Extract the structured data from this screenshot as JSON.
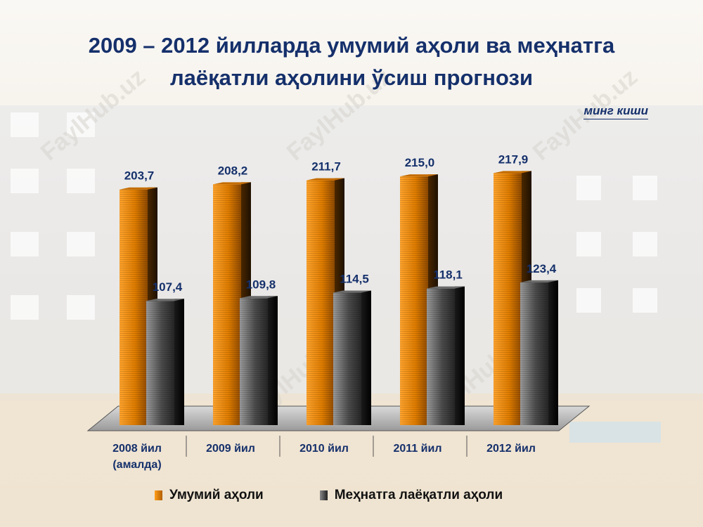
{
  "chart_data": {
    "type": "bar",
    "title_line1": "2009 – 2012 йилларда умумий аҳоли ва меҳнатга",
    "title_line2": "лаёқатли аҳолини ўсиш прогнози",
    "unit": "минг киши",
    "categories": [
      [
        "2008 йил",
        "(амалда)"
      ],
      [
        "2009 йил"
      ],
      [
        "2010 йил"
      ],
      [
        "2011 йил"
      ],
      [
        "2012 йил"
      ]
    ],
    "series": [
      {
        "name": "Умумий аҳоли",
        "values": [
          203.7,
          208.2,
          211.7,
          215.0,
          217.9
        ],
        "labels": [
          "203,7",
          "208,2",
          "211,7",
          "215,0",
          "217,9"
        ],
        "color": "#f08a00"
      },
      {
        "name": "Меҳнатга лаёқатли аҳоли",
        "values": [
          107.4,
          109.8,
          114.5,
          118.1,
          123.4
        ],
        "labels": [
          "107,4",
          "109,8",
          "114,5",
          "118,1",
          "123,4"
        ],
        "color": "#555555"
      }
    ],
    "ylim": [
      0,
      240
    ],
    "grid": false,
    "legend_position": "bottom"
  },
  "watermark": "FaylHub.uz",
  "colors": {
    "title": "#15306b",
    "orange": "#f08a00",
    "gray": "#555555"
  }
}
